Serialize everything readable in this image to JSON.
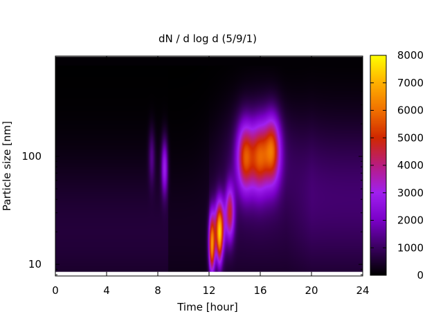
{
  "chart_data": {
    "type": "heatmap",
    "title": "dN / d log d (5/9/1)",
    "xlabel": "Time [hour]",
    "ylabel": "Particle size [nm]",
    "xlim": [
      0,
      24
    ],
    "x_ticks": [
      0,
      4,
      8,
      12,
      16,
      20,
      24
    ],
    "y_scale": "log",
    "ylim": [
      7.8,
      850
    ],
    "y_ticks": [
      10,
      100
    ],
    "colorbar": {
      "range": [
        0,
        8000
      ],
      "ticks": [
        0,
        1000,
        2000,
        3000,
        4000,
        5000,
        6000,
        7000,
        8000
      ],
      "colormap": [
        "#000000",
        "#3a0060",
        "#7a00c8",
        "#a020f0",
        "#b81c80",
        "#d02800",
        "#f07000",
        "#ffb000",
        "#ffff00"
      ]
    },
    "background_level": 600,
    "features": [
      {
        "name": "evening-band",
        "time_hours": [
          19.5,
          24
        ],
        "size_nm": [
          30,
          300
        ],
        "peak_value": 1300
      },
      {
        "name": "mid-band-8.5h",
        "time_hours": [
          8.5
        ],
        "size_nm": [
          80
        ],
        "peak_value": 3200
      },
      {
        "name": "mid-band-7.5h",
        "time_hours": [
          7.5
        ],
        "size_nm": [
          100
        ],
        "peak_value": 1800
      },
      {
        "name": "burst-12.2h",
        "time_hours": [
          12.2
        ],
        "size_nm": [
          17
        ],
        "peak_value": 5800
      },
      {
        "name": "burst-12.8h",
        "time_hours": [
          12.8
        ],
        "size_nm": [
          22
        ],
        "peak_value": 6500
      },
      {
        "name": "burst-13.6h",
        "time_hours": [
          13.6
        ],
        "size_nm": [
          30
        ],
        "peak_value": 4500
      },
      {
        "name": "peak-14.8h",
        "time_hours": [
          14.8
        ],
        "size_nm": [
          100
        ],
        "peak_value": 4800
      },
      {
        "name": "peak-15.9h",
        "time_hours": [
          15.9
        ],
        "size_nm": [
          100
        ],
        "peak_value": 4300
      },
      {
        "name": "peak-16.9h",
        "time_hours": [
          16.9
        ],
        "size_nm": [
          115
        ],
        "peak_value": 5000
      }
    ]
  }
}
